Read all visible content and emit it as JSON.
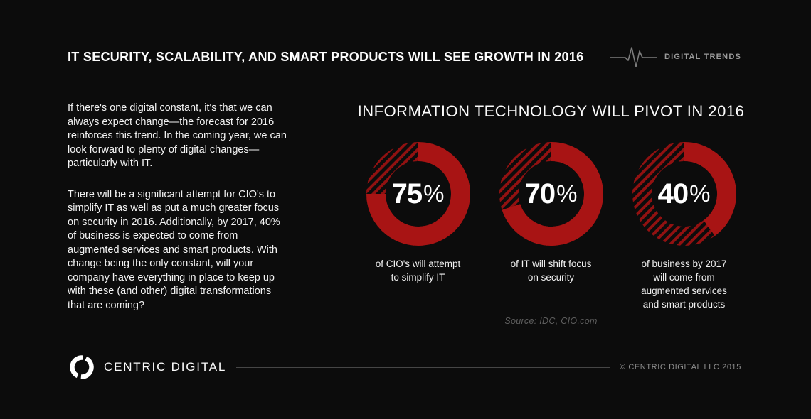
{
  "page": {
    "colors": {
      "background": "#0c0c0c",
      "accent_red": "#a81414",
      "hatch_red": "#911111",
      "white_text": "#fdfdfd",
      "gray_text": "#9a9a9a",
      "divider_gray": "#464646"
    },
    "icons": {
      "pulse": "ecg-heartbeat-line",
      "logo": "centric-digital-split-ring"
    }
  },
  "header": {
    "title": "IT SECURITY, SCALABILITY, AND SMART PRODUCTS WILL SEE GROWTH IN 2016",
    "brand_label": "DIGITAL TRENDS"
  },
  "intro": {
    "paragraph1": "If there's one digital constant, it's that we can always expect change—the forecast for 2016 reinforces this trend. In the coming year, we can look forward to plenty of digital changes—particularly with IT.",
    "paragraph2": "There will be a significant attempt for CIO's to simplify IT as well as put a much greater focus on security in 2016. Additionally, by 2017, 40% of business is expected to come from augmented services and smart products. With change being the only constant, will your company have everything in place to keep up with these (and other) digital transformations that are coming?"
  },
  "chart_data": {
    "type": "pie",
    "variant": "donut",
    "title": "INFORMATION TECHNOLOGY WILL PIVOT IN 2016",
    "units": "%",
    "start_angle": "top",
    "direction": "clockwise",
    "legend_position": "none",
    "series": [
      {
        "value": 75,
        "caption_lines": [
          "of CIO's will attempt",
          "to simplify IT"
        ]
      },
      {
        "value": 70,
        "caption_lines": [
          "of IT will shift focus",
          "on security"
        ]
      },
      {
        "value": 40,
        "caption_lines": [
          "of business by 2017",
          "will come from",
          "augmented services",
          "and smart products"
        ]
      }
    ],
    "style": {
      "fill": "#a81414",
      "hatch": "#911111",
      "remainder": "diagonal-hatched"
    },
    "source": "Source: IDC, CIO.com"
  },
  "footer": {
    "brand": "CENTRIC DIGITAL",
    "copyright": "© CENTRIC DIGITAL LLC 2015"
  }
}
